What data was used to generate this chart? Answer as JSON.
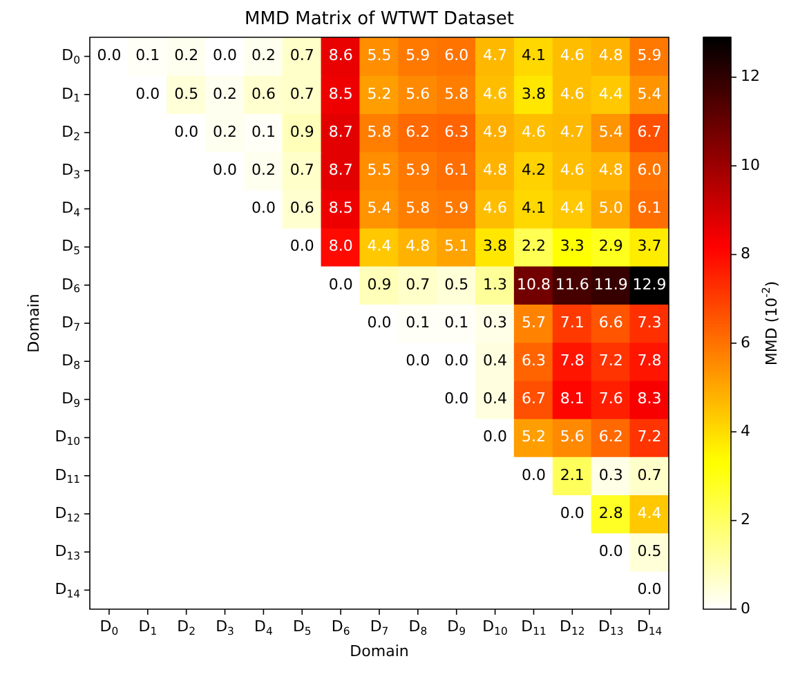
{
  "chart_data": {
    "type": "heatmap",
    "title": "MMD Matrix of WTWT Dataset",
    "xlabel": "Domain",
    "ylabel": "Domain",
    "clabel": "MMD (10$^{-2}$)",
    "categories": [
      "D$_{0}$",
      "D$_{1}$",
      "D$_{2}$",
      "D$_{3}$",
      "D$_{4}$",
      "D$_{5}$",
      "D$_{6}$",
      "D$_{7}$",
      "D$_{8}$",
      "D$_{9}$",
      "D$_{10}$",
      "D$_{11}$",
      "D$_{12}$",
      "D$_{13}$",
      "D$_{14}$"
    ],
    "y_categories": [
      "D$_{0}$",
      "D$_{1}$",
      "D$_{2}$",
      "D$_{3}$",
      "D$_{4}$",
      "D$_{5}$",
      "D$_{6}$",
      "D$_{7}$",
      "D$_{8}$",
      "D$_{9}$",
      "D$_{10}$",
      "D$_{11}$",
      "D$_{12}$",
      "D$_{13}$",
      "D$_{14}$"
    ],
    "cells": [
      [
        0.0,
        0.1,
        0.2,
        0.0,
        0.2,
        0.7,
        8.6,
        5.5,
        5.9,
        6.0,
        4.7,
        4.1,
        4.6,
        4.8,
        5.9
      ],
      [
        null,
        0.0,
        0.5,
        0.2,
        0.6,
        0.7,
        8.5,
        5.2,
        5.6,
        5.8,
        4.6,
        3.8,
        4.6,
        4.4,
        5.4
      ],
      [
        null,
        null,
        0.0,
        0.2,
        0.1,
        0.9,
        8.7,
        5.8,
        6.2,
        6.3,
        4.9,
        4.6,
        4.7,
        5.4,
        6.7
      ],
      [
        null,
        null,
        null,
        0.0,
        0.2,
        0.7,
        8.7,
        5.5,
        5.9,
        6.1,
        4.8,
        4.2,
        4.6,
        4.8,
        6.0
      ],
      [
        null,
        null,
        null,
        null,
        0.0,
        0.6,
        8.5,
        5.4,
        5.8,
        5.9,
        4.6,
        4.1,
        4.4,
        5.0,
        6.1
      ],
      [
        null,
        null,
        null,
        null,
        null,
        0.0,
        8.0,
        4.4,
        4.8,
        5.1,
        3.8,
        2.2,
        3.3,
        2.9,
        3.7
      ],
      [
        null,
        null,
        null,
        null,
        null,
        null,
        0.0,
        0.9,
        0.7,
        0.5,
        1.3,
        10.8,
        11.6,
        11.9,
        12.9
      ],
      [
        null,
        null,
        null,
        null,
        null,
        null,
        null,
        0.0,
        0.1,
        0.1,
        0.3,
        5.7,
        7.1,
        6.6,
        7.3
      ],
      [
        null,
        null,
        null,
        null,
        null,
        null,
        null,
        null,
        0.0,
        0.0,
        0.4,
        6.3,
        7.8,
        7.2,
        7.8
      ],
      [
        null,
        null,
        null,
        null,
        null,
        null,
        null,
        null,
        null,
        0.0,
        0.4,
        6.7,
        8.1,
        7.6,
        8.3
      ],
      [
        null,
        null,
        null,
        null,
        null,
        null,
        null,
        null,
        null,
        null,
        0.0,
        5.2,
        5.6,
        6.2,
        7.2
      ],
      [
        null,
        null,
        null,
        null,
        null,
        null,
        null,
        null,
        null,
        null,
        null,
        0.0,
        2.1,
        0.3,
        0.7
      ],
      [
        null,
        null,
        null,
        null,
        null,
        null,
        null,
        null,
        null,
        null,
        null,
        null,
        0.0,
        2.8,
        4.4
      ],
      [
        null,
        null,
        null,
        null,
        null,
        null,
        null,
        null,
        null,
        null,
        null,
        null,
        null,
        0.0,
        0.5
      ],
      [
        null,
        null,
        null,
        null,
        null,
        null,
        null,
        null,
        null,
        null,
        null,
        null,
        null,
        null,
        0.0
      ]
    ],
    "cell_labels": [
      [
        "0.0",
        "0.1",
        "0.2",
        "0.0",
        "0.2",
        "0.7",
        "8.6",
        "5.5",
        "5.9",
        "6.0",
        "4.7",
        "4.1",
        "4.6",
        "4.8",
        "5.9"
      ],
      [
        null,
        "0.0",
        "0.5",
        "0.2",
        "0.6",
        "0.7",
        "8.5",
        "5.2",
        "5.6",
        "5.8",
        "4.6",
        "3.8",
        "4.6",
        "4.4",
        "5.4"
      ],
      [
        null,
        null,
        "0.0",
        "0.2",
        "0.1",
        "0.9",
        "8.7",
        "5.8",
        "6.2",
        "6.3",
        "4.9",
        "4.6",
        "4.7",
        "5.4",
        "6.7"
      ],
      [
        null,
        null,
        null,
        "0.0",
        "0.2",
        "0.7",
        "8.7",
        "5.5",
        "5.9",
        "6.1",
        "4.8",
        "4.2",
        "4.6",
        "4.8",
        "6.0"
      ],
      [
        null,
        null,
        null,
        null,
        "0.0",
        "0.6",
        "8.5",
        "5.4",
        "5.8",
        "5.9",
        "4.6",
        "4.1",
        "4.4",
        "5.0",
        "6.1"
      ],
      [
        null,
        null,
        null,
        null,
        null,
        "0.0",
        "8.0",
        "4.4",
        "4.8",
        "5.1",
        "3.8",
        "2.2",
        "3.3",
        "2.9",
        "3.7"
      ],
      [
        null,
        null,
        null,
        null,
        null,
        null,
        "0.0",
        "0.9",
        "0.7",
        "0.5",
        "1.3",
        "10.8",
        "11.6",
        "11.9",
        "12.9"
      ],
      [
        null,
        null,
        null,
        null,
        null,
        null,
        null,
        "0.0",
        "0.1",
        "0.1",
        "0.3",
        "5.7",
        "7.1",
        "6.6",
        "7.3"
      ],
      [
        null,
        null,
        null,
        null,
        null,
        null,
        null,
        null,
        "0.0",
        "0.0",
        "0.4",
        "6.3",
        "7.8",
        "7.2",
        "7.8"
      ],
      [
        null,
        null,
        null,
        null,
        null,
        null,
        null,
        null,
        null,
        "0.0",
        "0.4",
        "6.7",
        "8.1",
        "7.6",
        "8.3"
      ],
      [
        null,
        null,
        null,
        null,
        null,
        null,
        null,
        null,
        null,
        null,
        "0.0",
        "5.2",
        "5.6",
        "6.2",
        "7.2"
      ],
      [
        null,
        null,
        null,
        null,
        null,
        null,
        null,
        null,
        null,
        null,
        null,
        "0.0",
        "2.1",
        "0.3",
        "0.7"
      ],
      [
        null,
        null,
        null,
        null,
        null,
        null,
        null,
        null,
        null,
        null,
        null,
        null,
        "0.0",
        "2.8",
        "4.4"
      ],
      [
        null,
        null,
        null,
        null,
        null,
        null,
        null,
        null,
        null,
        null,
        null,
        null,
        null,
        "0.0",
        "0.5"
      ],
      [
        null,
        null,
        null,
        null,
        null,
        null,
        null,
        null,
        null,
        null,
        null,
        null,
        null,
        null,
        "0.0"
      ]
    ],
    "clim": [
      0,
      12.9
    ],
    "cticks": [
      0,
      2,
      4,
      6,
      8,
      10,
      12
    ],
    "data_labels": true
  }
}
